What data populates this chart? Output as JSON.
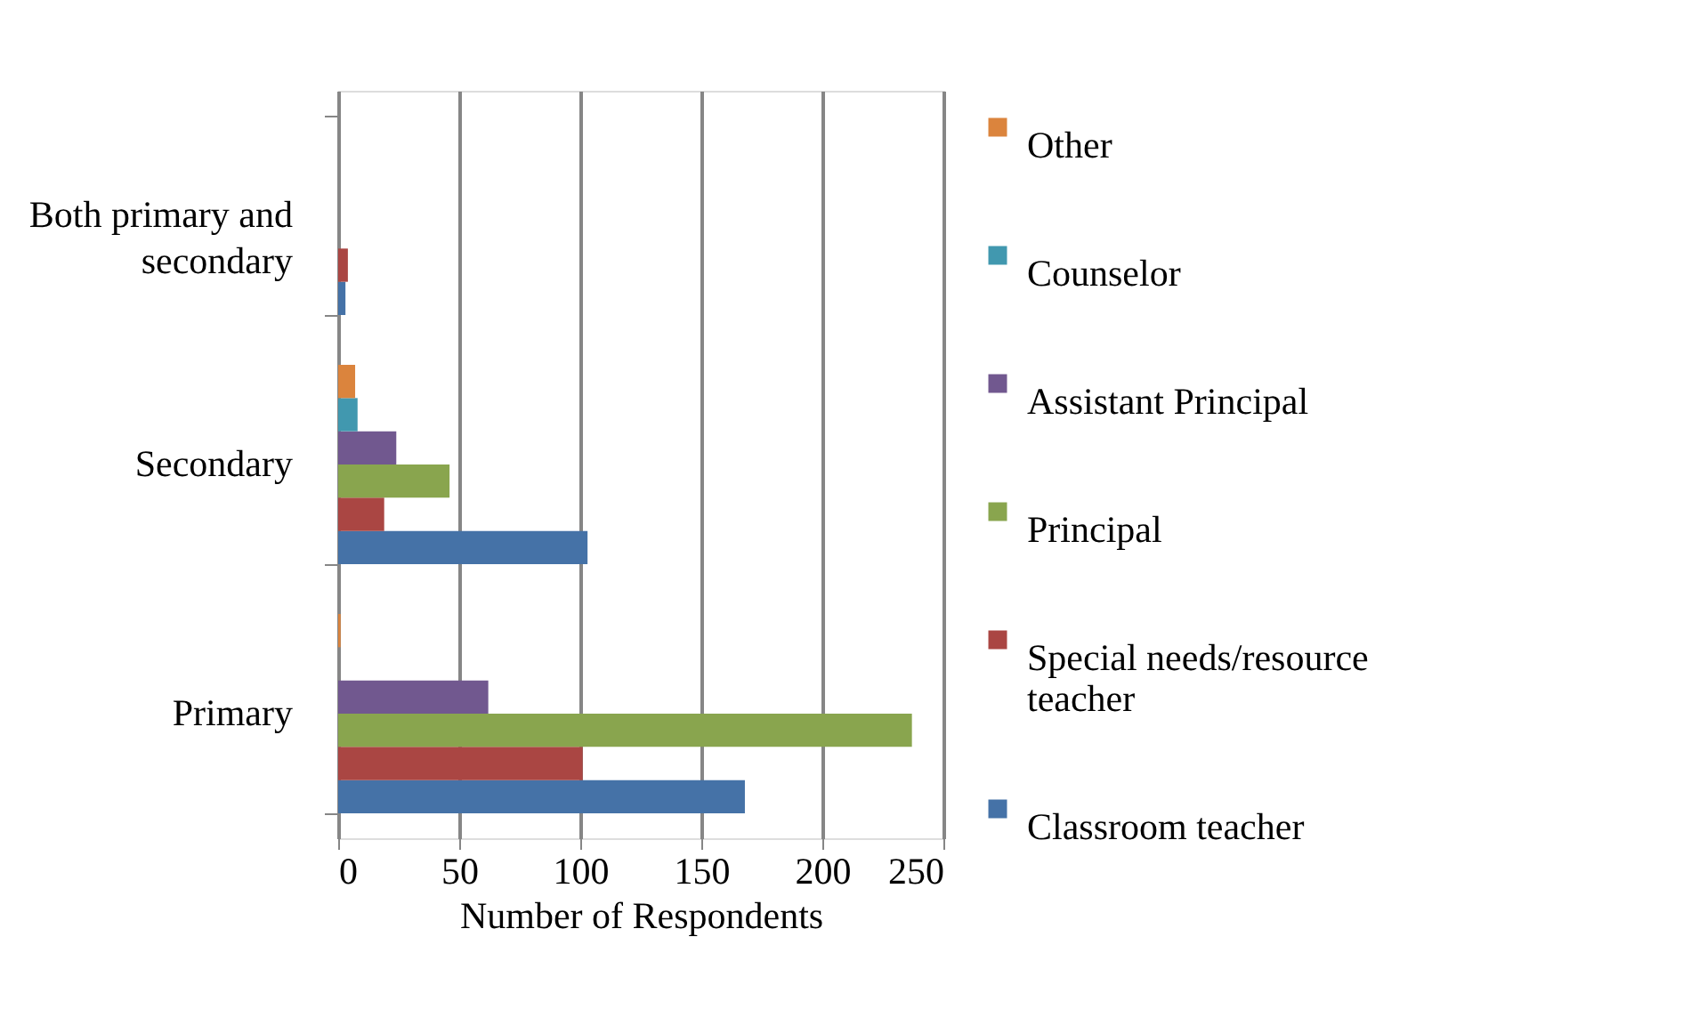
{
  "chart_data": {
    "type": "bar",
    "orientation": "horizontal",
    "xlabel": "Number of Respondents",
    "categories": [
      "Both primary and secondary",
      "Secondary",
      "Primary"
    ],
    "series": [
      {
        "name": "Classroom teacher",
        "color": "#4572a7",
        "values": [
          3,
          103,
          168
        ]
      },
      {
        "name": "Special needs/resource teacher",
        "color": "#aa4643",
        "values": [
          4,
          19,
          101
        ]
      },
      {
        "name": "Principal",
        "color": "#89a54e",
        "values": [
          null,
          46,
          237
        ]
      },
      {
        "name": "Assistant Principal",
        "color": "#71588f",
        "values": [
          null,
          24,
          62
        ]
      },
      {
        "name": "Counselor",
        "color": "#4198af",
        "values": [
          null,
          8,
          null
        ]
      },
      {
        "name": "Other",
        "color": "#db843d",
        "values": [
          null,
          7,
          1
        ]
      }
    ],
    "xlim": [
      0,
      250
    ],
    "xticks": [
      0,
      50,
      100,
      150,
      200,
      250
    ],
    "grid": "x",
    "legend": "right"
  }
}
